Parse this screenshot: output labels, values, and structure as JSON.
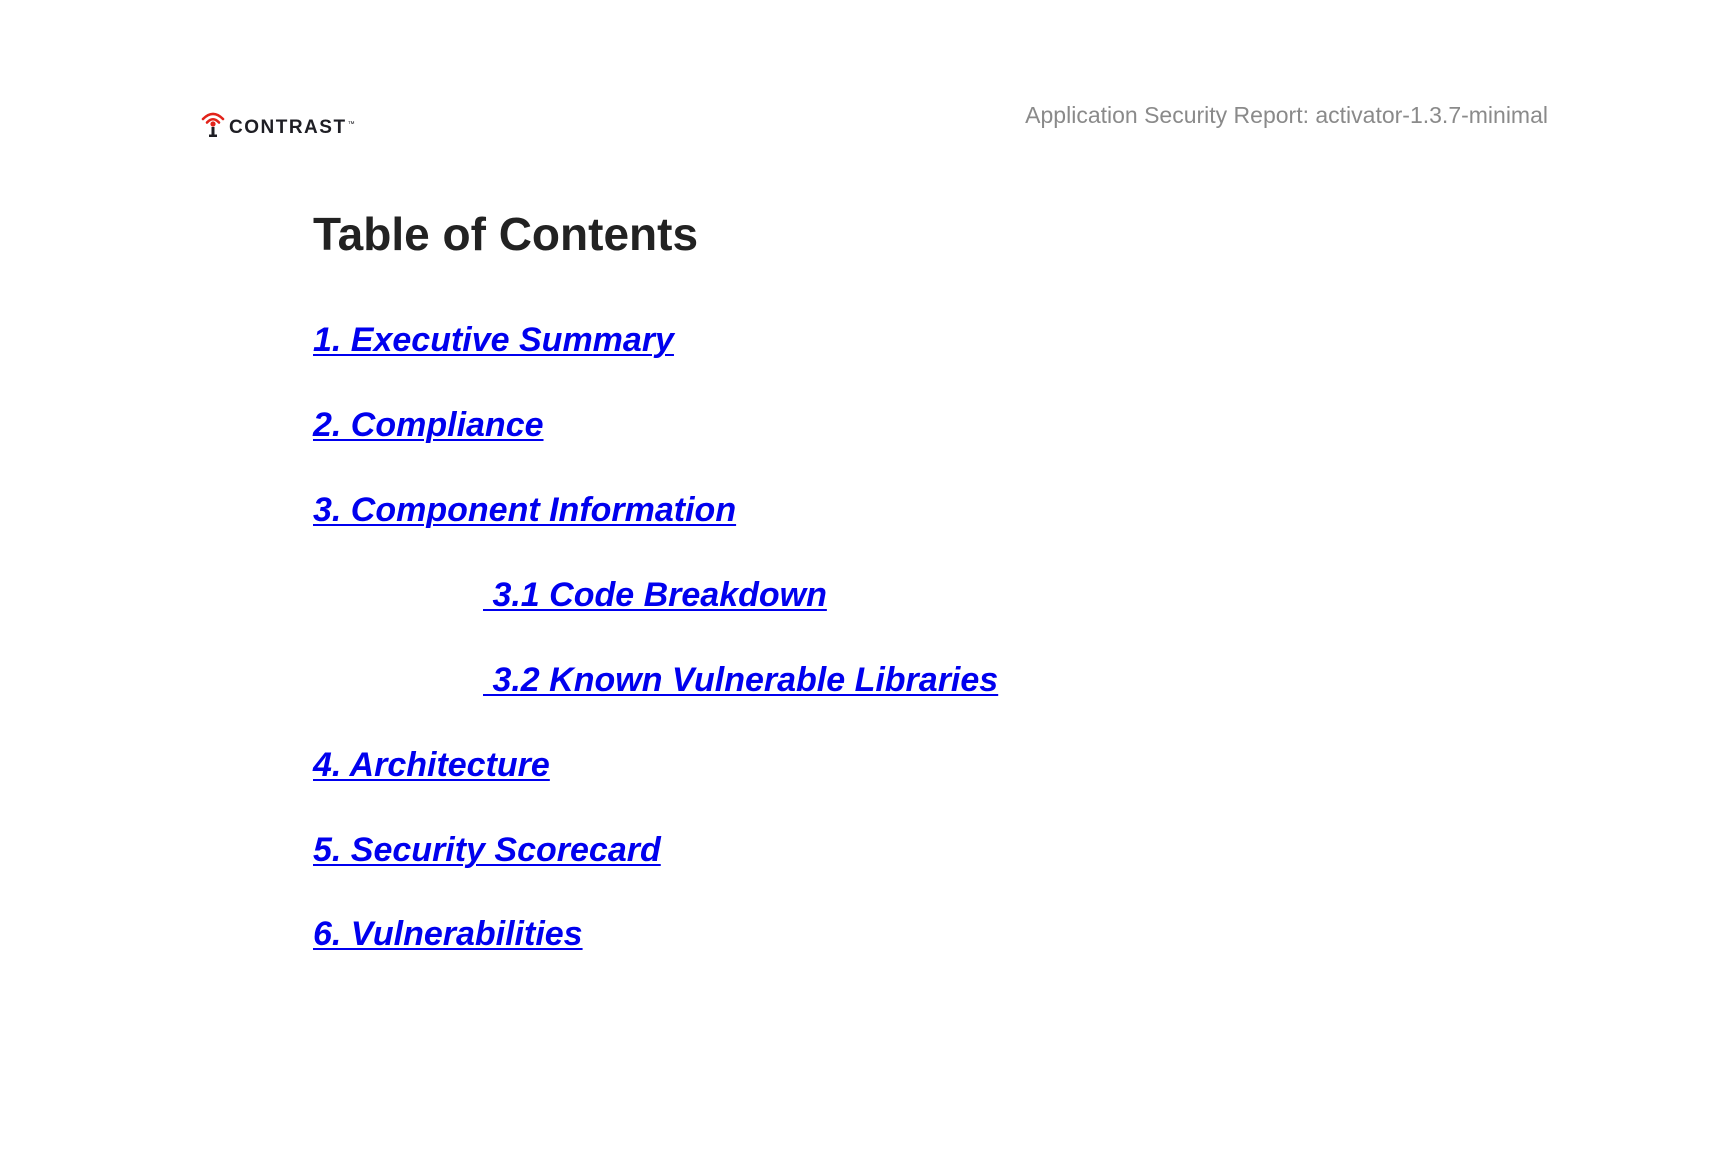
{
  "header": {
    "logo_text": "CONTRAST",
    "logo_tm": "™",
    "report_title": "Application Security Report: activator-1.3.7-minimal"
  },
  "toc": {
    "heading": "Table of Contents",
    "items": [
      {
        "label": "1. Executive Summary",
        "level": 1
      },
      {
        "label": "2. Compliance",
        "level": 1
      },
      {
        "label": "3. Component Information",
        "level": 1
      },
      {
        "label": " 3.1 Code Breakdown",
        "level": 2
      },
      {
        "label": " 3.2 Known Vulnerable Libraries",
        "level": 2
      },
      {
        "label": "4. Architecture",
        "level": 1
      },
      {
        "label": "5. Security Scorecard",
        "level": 1
      },
      {
        "label": "6. Vulnerabilities",
        "level": 1
      }
    ]
  },
  "colors": {
    "link": "#0000ee",
    "heading": "#222222",
    "header_text": "#8a8a8a",
    "logo_accent": "#e2231a",
    "logo_text": "#1e1e24"
  },
  "icons": {
    "logo": "contrast-logo-icon"
  }
}
